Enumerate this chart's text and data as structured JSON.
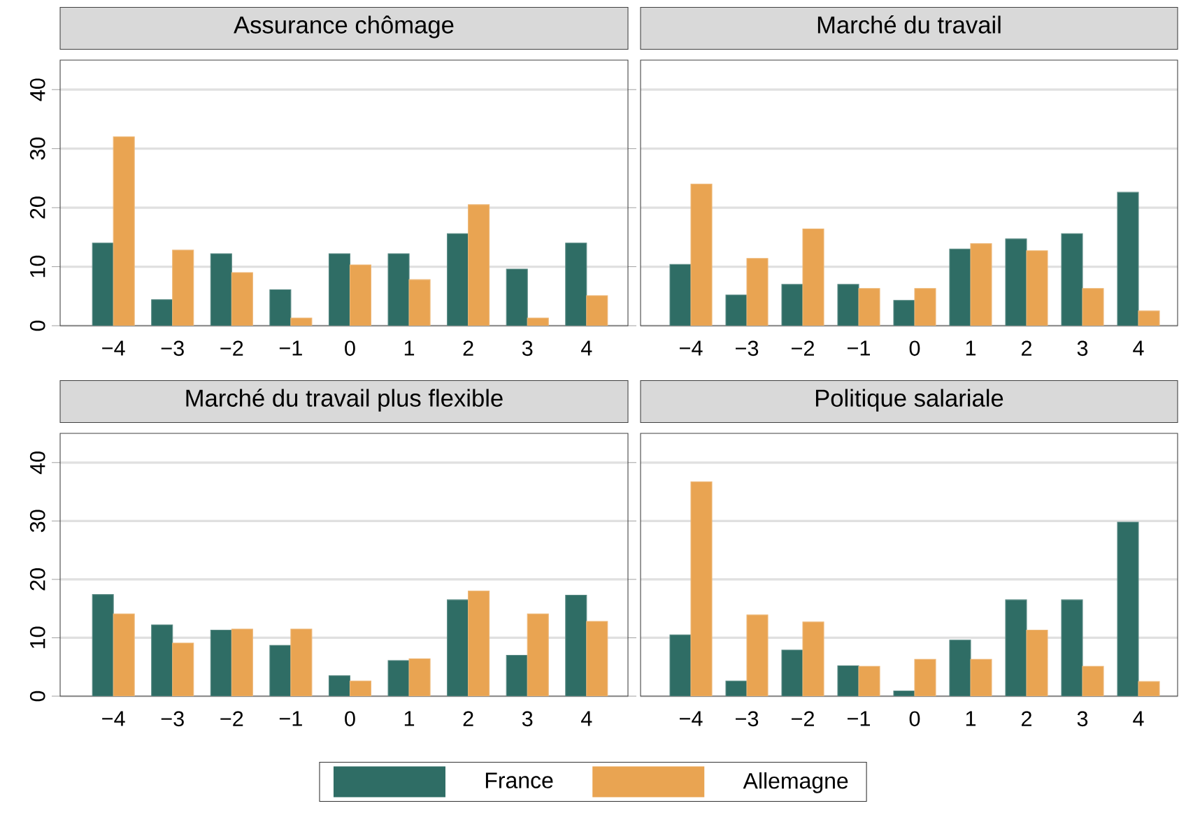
{
  "chart_data": [
    {
      "type": "bar",
      "title": "Assurance chômage",
      "categories": [
        "−4",
        "−3",
        "−2",
        "−1",
        "0",
        "1",
        "2",
        "3",
        "4"
      ],
      "ylim": [
        0,
        45
      ],
      "yticks": [
        0,
        10,
        20,
        30,
        40
      ],
      "grid": "y",
      "legend": false,
      "series": [
        {
          "color": "#2f6d65",
          "values": [
            14,
            4.4,
            12.2,
            6.1,
            12.2,
            12.2,
            15.6,
            9.6,
            14
          ]
        },
        {
          "color": "#e9a452",
          "values": [
            32,
            12.8,
            9,
            1.3,
            10.3,
            7.8,
            20.5,
            1.3,
            5.1
          ]
        }
      ]
    },
    {
      "type": "bar",
      "title": "Marché du travail",
      "categories": [
        "−4",
        "−3",
        "−2",
        "−1",
        "0",
        "1",
        "2",
        "3",
        "4"
      ],
      "ylim": [
        0,
        45
      ],
      "yticks": [
        0,
        10,
        20,
        30,
        40
      ],
      "grid": "y",
      "legend": false,
      "tick_labels": "x",
      "series": [
        {
          "color": "#2f6d65",
          "values": [
            10.4,
            5.2,
            7,
            7,
            4.3,
            13,
            14.7,
            15.6,
            22.6
          ]
        },
        {
          "color": "#e9a452",
          "values": [
            24,
            11.4,
            16.4,
            6.3,
            6.3,
            13.9,
            12.7,
            6.3,
            2.5
          ]
        }
      ]
    },
    {
      "type": "bar",
      "title": "Marché du travail plus flexible",
      "categories": [
        "−4",
        "−3",
        "−2",
        "−1",
        "0",
        "1",
        "2",
        "3",
        "4"
      ],
      "ylim": [
        0,
        45
      ],
      "yticks": [
        0,
        10,
        20,
        30,
        40
      ],
      "grid": "y",
      "legend": false,
      "series": [
        {
          "color": "#2f6d65",
          "values": [
            17.4,
            12.2,
            11.3,
            8.7,
            3.5,
            6.1,
            16.5,
            7,
            17.3
          ]
        },
        {
          "color": "#e9a452",
          "values": [
            14.1,
            9.1,
            11.5,
            11.5,
            2.6,
            6.4,
            18,
            14.1,
            12.8
          ]
        }
      ]
    },
    {
      "type": "bar",
      "title": "Politique salariale",
      "categories": [
        "−4",
        "−3",
        "−2",
        "−1",
        "0",
        "1",
        "2",
        "3",
        "4"
      ],
      "ylim": [
        0,
        45
      ],
      "yticks": [
        0,
        10,
        20,
        30,
        40
      ],
      "grid": "y",
      "legend": "bottom",
      "tick_labels": "x",
      "series": [
        {
          "name": "France",
          "color": "#2f6d65",
          "values": [
            10.5,
            2.6,
            7.9,
            5.2,
            0.9,
            9.6,
            16.5,
            16.5,
            29.8
          ]
        },
        {
          "name": "Allemagne",
          "color": "#e9a452",
          "values": [
            36.7,
            13.9,
            12.7,
            5.1,
            6.3,
            6.3,
            11.3,
            5.1,
            2.5
          ]
        }
      ]
    }
  ]
}
